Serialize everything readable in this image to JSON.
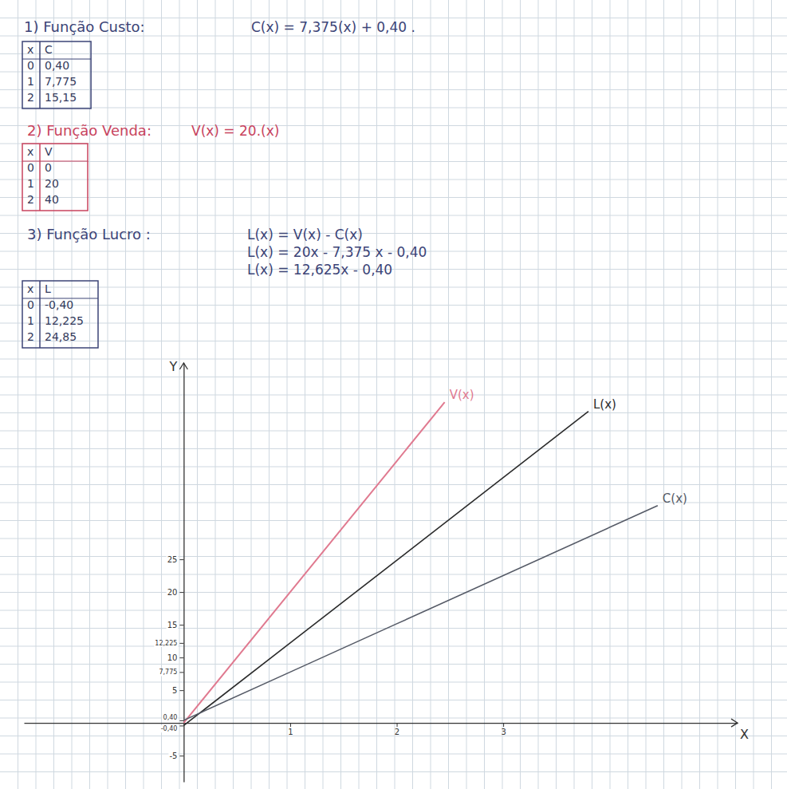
{
  "sections": [
    {
      "heading": "1) Função Custo:",
      "formula": [
        "C(x) = 7,375(x) + 0,40 ."
      ],
      "color": "#3c4477",
      "table": {
        "columns": [
          "x",
          "C"
        ],
        "rows": [
          [
            "0",
            "0,40"
          ],
          [
            "1",
            "7,775"
          ],
          [
            "2",
            "15,15"
          ]
        ]
      }
    },
    {
      "heading": "2) Função Venda:",
      "formula": [
        "V(x) = 20.(x)"
      ],
      "color": "#c8435e",
      "table": {
        "columns": [
          "x",
          "V"
        ],
        "rows": [
          [
            "0",
            "0"
          ],
          [
            "1",
            "20"
          ],
          [
            "2",
            "40"
          ]
        ]
      }
    },
    {
      "heading": "3) Função Lucro :",
      "formula": [
        "L(x) = V(x) - C(x)",
        "L(x) = 20x - 7,375 x - 0,40",
        "L(x) = 12,625x - 0,40"
      ],
      "color": "#3c4477",
      "table": {
        "columns": [
          "x",
          "L"
        ],
        "rows": [
          [
            "0",
            "-0,40"
          ],
          [
            "1",
            "12,225"
          ],
          [
            "2",
            "24,85"
          ]
        ]
      }
    }
  ],
  "chart_data": {
    "type": "line",
    "x_label": "X",
    "y_label": "Y",
    "xlim": [
      -1.5,
      5.2
    ],
    "ylim": [
      -9,
      55
    ],
    "xticks": [
      1,
      2,
      3
    ],
    "yticks": [
      -5,
      {
        "value": -0.4,
        "label": "-0,40"
      },
      {
        "value": 0.4,
        "label": "0,40"
      },
      5,
      {
        "value": 7.775,
        "label": "7,775"
      },
      10,
      {
        "value": 12.225,
        "label": "12,225"
      },
      15,
      20,
      25
    ],
    "grid": false,
    "series": [
      {
        "name": "V(x)",
        "color": "#e07a90",
        "x": [
          0,
          1,
          2,
          2.45
        ],
        "values": [
          0,
          20,
          40,
          49
        ]
      },
      {
        "name": "L(x)",
        "color": "#2b2b2b",
        "x": [
          0,
          1,
          2,
          3.8
        ],
        "values": [
          -0.4,
          12.225,
          24.85,
          47.6
        ]
      },
      {
        "name": "C(x)",
        "color": "#555a66",
        "x": [
          0,
          1,
          2,
          4.45
        ],
        "values": [
          0.4,
          7.775,
          15.15,
          33.2
        ]
      }
    ]
  }
}
